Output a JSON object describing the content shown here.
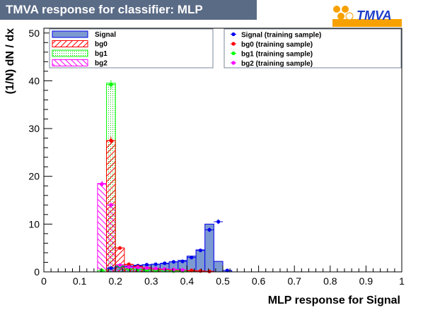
{
  "header": {
    "title": "TMVA response for classifier: MLP",
    "logo_text": "TMVA"
  },
  "colors": {
    "title_bg": "#5a6b86",
    "signal_fill": "#7d99d1",
    "signal_line": "#0000ee",
    "bg0": "#ff0000",
    "bg1": "#00ff00",
    "bg2": "#ff00ff",
    "logo_orange": "#f7a100",
    "logo_blue": "#1c3cc8"
  },
  "chart_data": {
    "type": "bar",
    "xlabel": "MLP response for Signal",
    "ylabel": "(1/N) dN / dx",
    "xlim": [
      0,
      1
    ],
    "ylim": [
      0,
      51
    ],
    "xticks": [
      "0",
      "0.1",
      "0.2",
      "0.3",
      "0.4",
      "0.5",
      "0.6",
      "0.7",
      "0.8",
      "0.9",
      "1"
    ],
    "yticks": [
      "0",
      "10",
      "20",
      "30",
      "40",
      "50"
    ],
    "bin_width": 0.025,
    "legend_left": [
      {
        "label": "Signal",
        "style": "signal"
      },
      {
        "label": "bg0",
        "style": "bg0"
      },
      {
        "label": "bg1",
        "style": "bg1"
      },
      {
        "label": "bg2",
        "style": "bg2"
      }
    ],
    "legend_right": [
      {
        "label": "Signal (training sample)",
        "style": "signal"
      },
      {
        "label": "bg0 (training sample)",
        "style": "bg0"
      },
      {
        "label": "bg1 (training sample)",
        "style": "bg1"
      },
      {
        "label": "bg2 (training sample)",
        "style": "bg2"
      }
    ],
    "series": [
      {
        "name": "Signal",
        "style": "signal",
        "bins": [
          [
            0.175,
            0.8
          ],
          [
            0.2,
            1.0
          ],
          [
            0.225,
            1.2
          ],
          [
            0.25,
            1.4
          ],
          [
            0.275,
            1.5
          ],
          [
            0.3,
            1.6
          ],
          [
            0.325,
            1.7
          ],
          [
            0.35,
            2.1
          ],
          [
            0.375,
            2.4
          ],
          [
            0.4,
            3.3
          ],
          [
            0.425,
            4.6
          ],
          [
            0.45,
            10.0
          ],
          [
            0.475,
            2.2
          ],
          [
            0.5,
            0.3
          ]
        ]
      },
      {
        "name": "bg0",
        "style": "bg0",
        "bins": [
          [
            0.175,
            27.5
          ],
          [
            0.2,
            5.0
          ],
          [
            0.225,
            1.5
          ],
          [
            0.25,
            1.2
          ],
          [
            0.275,
            0.9
          ],
          [
            0.3,
            0.7
          ],
          [
            0.325,
            0.5
          ],
          [
            0.35,
            0.4
          ],
          [
            0.375,
            0.3
          ],
          [
            0.4,
            0.2
          ],
          [
            0.425,
            0.2
          ],
          [
            0.45,
            0.1
          ]
        ]
      },
      {
        "name": "bg1",
        "style": "bg1",
        "bins": [
          [
            0.15,
            0.3
          ],
          [
            0.175,
            39.5
          ],
          [
            0.2,
            1.3
          ],
          [
            0.225,
            0.6
          ],
          [
            0.25,
            0.5
          ],
          [
            0.275,
            0.4
          ],
          [
            0.3,
            0.3
          ],
          [
            0.325,
            0.3
          ],
          [
            0.35,
            0.2
          ],
          [
            0.375,
            0.2
          ],
          [
            0.4,
            0.1
          ]
        ]
      },
      {
        "name": "bg2",
        "style": "bg2",
        "bins": [
          [
            0.15,
            18.5
          ],
          [
            0.175,
            14.0
          ],
          [
            0.2,
            1.5
          ],
          [
            0.225,
            1.1
          ],
          [
            0.25,
            0.9
          ],
          [
            0.275,
            0.8
          ],
          [
            0.3,
            0.7
          ],
          [
            0.325,
            0.6
          ],
          [
            0.35,
            0.5
          ],
          [
            0.375,
            0.4
          ],
          [
            0.4,
            0.3
          ]
        ]
      }
    ],
    "training_points": [
      {
        "name": "Signal (training sample)",
        "style": "signal",
        "points": [
          [
            0.1875,
            0.8
          ],
          [
            0.2125,
            1.1
          ],
          [
            0.2375,
            1.2
          ],
          [
            0.2625,
            1.3
          ],
          [
            0.2875,
            1.5
          ],
          [
            0.3125,
            1.6
          ],
          [
            0.3375,
            1.8
          ],
          [
            0.3625,
            2.1
          ],
          [
            0.3875,
            2.2
          ],
          [
            0.4125,
            3.0
          ],
          [
            0.4375,
            4.5
          ],
          [
            0.4625,
            8.8
          ],
          [
            0.4875,
            10.5
          ],
          [
            0.5125,
            0.3
          ]
        ]
      },
      {
        "name": "bg0 (training sample)",
        "style": "bg0",
        "points": [
          [
            0.1875,
            27.5
          ],
          [
            0.2125,
            5.0
          ],
          [
            0.2375,
            1.6
          ],
          [
            0.2625,
            1.1
          ],
          [
            0.2875,
            0.8
          ],
          [
            0.3125,
            0.6
          ],
          [
            0.3375,
            0.5
          ],
          [
            0.3625,
            0.4
          ],
          [
            0.3875,
            0.3
          ],
          [
            0.4125,
            0.3
          ],
          [
            0.4375,
            0.2
          ],
          [
            0.4625,
            0.1
          ]
        ]
      },
      {
        "name": "bg1 (training sample)",
        "style": "bg1",
        "points": [
          [
            0.1625,
            0.3
          ],
          [
            0.1875,
            39.2
          ],
          [
            0.2125,
            1.2
          ],
          [
            0.2375,
            0.6
          ],
          [
            0.2625,
            0.5
          ],
          [
            0.2875,
            0.4
          ],
          [
            0.3125,
            0.3
          ],
          [
            0.3375,
            0.3
          ],
          [
            0.3625,
            0.2
          ],
          [
            0.3875,
            0.2
          ]
        ]
      },
      {
        "name": "bg2 (training sample)",
        "style": "bg2",
        "points": [
          [
            0.1625,
            18.4
          ],
          [
            0.1875,
            14.0
          ],
          [
            0.2125,
            1.4
          ],
          [
            0.2375,
            1.0
          ],
          [
            0.2625,
            0.9
          ],
          [
            0.2875,
            0.8
          ],
          [
            0.3125,
            0.7
          ],
          [
            0.3375,
            0.6
          ],
          [
            0.3625,
            0.5
          ],
          [
            0.3875,
            0.4
          ]
        ]
      }
    ]
  }
}
